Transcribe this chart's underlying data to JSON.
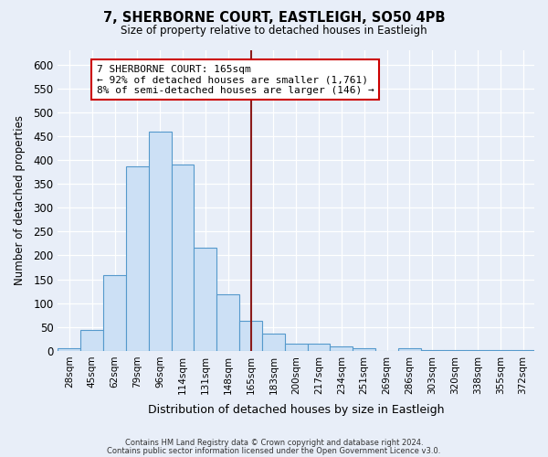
{
  "title": "7, SHERBORNE COURT, EASTLEIGH, SO50 4PB",
  "subtitle": "Size of property relative to detached houses in Eastleigh",
  "xlabel": "Distribution of detached houses by size in Eastleigh",
  "ylabel": "Number of detached properties",
  "bar_color": "#cce0f5",
  "bar_edge_color": "#5599cc",
  "background_color": "#e8eef8",
  "categories": [
    "28sqm",
    "45sqm",
    "62sqm",
    "79sqm",
    "96sqm",
    "114sqm",
    "131sqm",
    "148sqm",
    "165sqm",
    "183sqm",
    "200sqm",
    "217sqm",
    "234sqm",
    "251sqm",
    "269sqm",
    "286sqm",
    "303sqm",
    "320sqm",
    "338sqm",
    "355sqm",
    "372sqm"
  ],
  "values": [
    5,
    43,
    158,
    386,
    460,
    390,
    216,
    118,
    63,
    36,
    16,
    15,
    9,
    5,
    0,
    5,
    1,
    1,
    1,
    1,
    1
  ],
  "vline_x": 8,
  "vline_color": "#8b1a1a",
  "annotation_text": "7 SHERBORNE COURT: 165sqm\n← 92% of detached houses are smaller (1,761)\n8% of semi-detached houses are larger (146) →",
  "annotation_box_color": "#ffffff",
  "annotation_edge_color": "#cc0000",
  "ylim": [
    0,
    630
  ],
  "yticks": [
    0,
    50,
    100,
    150,
    200,
    250,
    300,
    350,
    400,
    450,
    500,
    550,
    600
  ],
  "footer1": "Contains HM Land Registry data © Crown copyright and database right 2024.",
  "footer2": "Contains public sector information licensed under the Open Government Licence v3.0."
}
